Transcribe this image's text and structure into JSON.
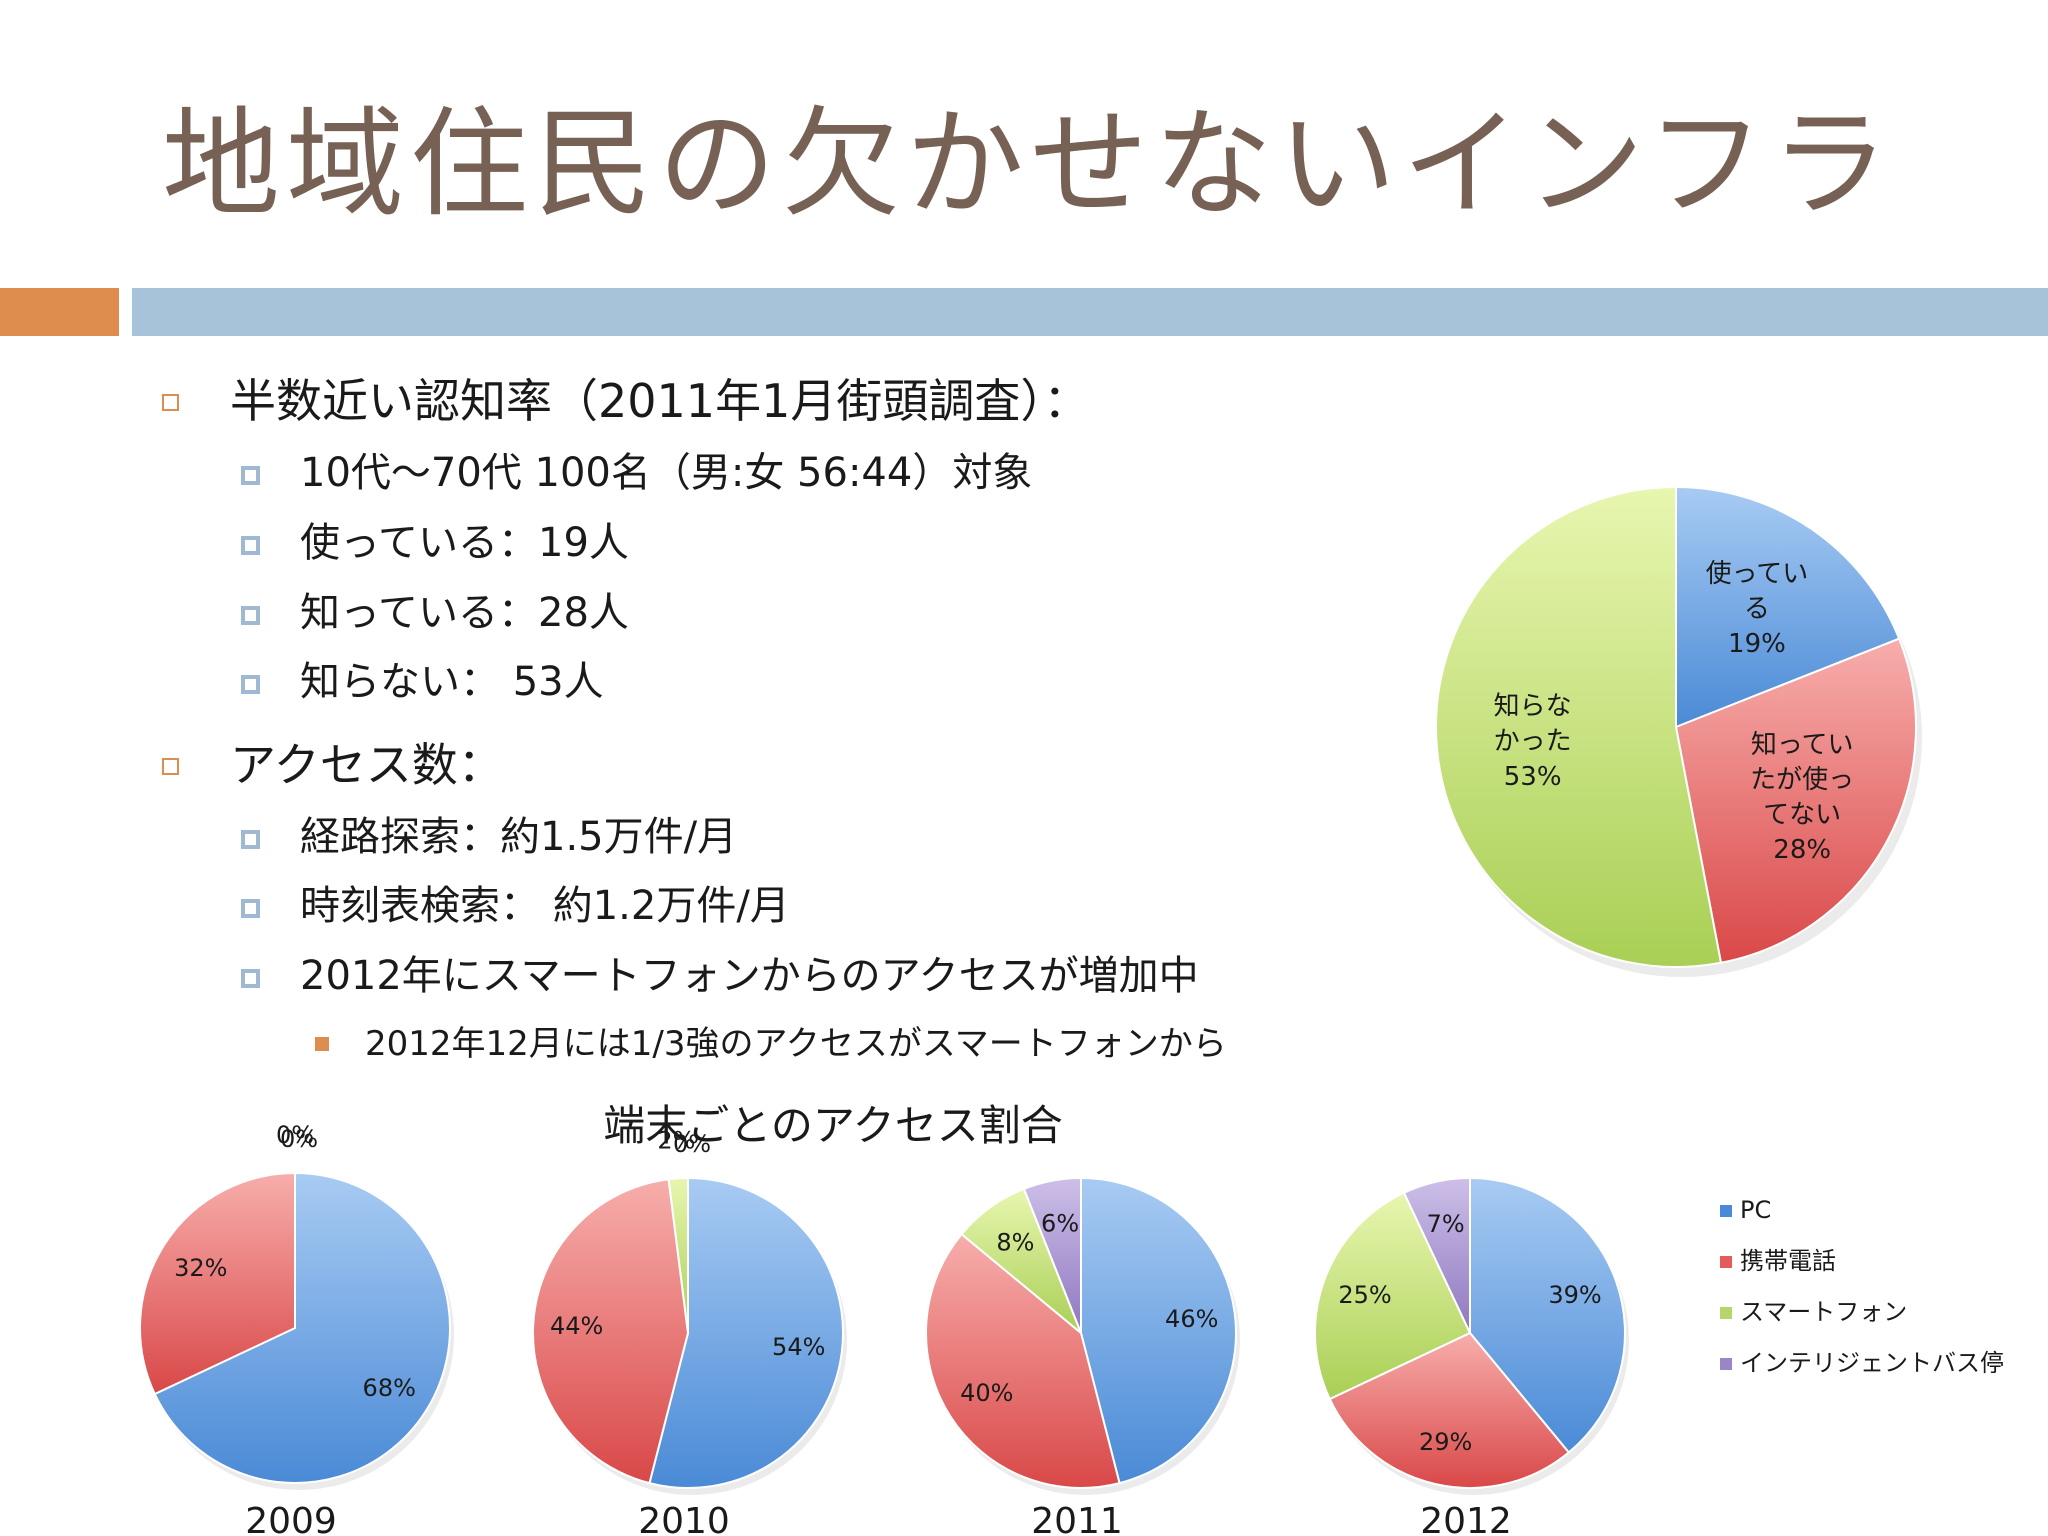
{
  "title": "地域住民の欠かせないインフラ",
  "bullets": {
    "awareness": "半数近い認知率（2011年1月街頭調査）：",
    "survey_target": "10代〜70代 100名（男:女 56:44）対象",
    "using": "使っている：19人",
    "knowing": "知っている：28人",
    "not_knowing": "知らない：  53人",
    "access_count": "アクセス数：",
    "route_search": "経路探索：約1.5万件/月",
    "timetable_search": "時刻表検索： 約1.2万件/月",
    "smartphone_increase": "2012年にスマートフォンからのアクセスが増加中",
    "smartphone_share": "2012年12月には1/3強のアクセスがスマートフォンから"
  },
  "chart_data": [
    {
      "type": "pie",
      "id": "awareness",
      "title": "",
      "slices": [
        {
          "label": "使ってい\nる",
          "percent_label": "19%",
          "value": 19,
          "color": "#4a8ad6"
        },
        {
          "label": "知ってい\nたが使っ\nてない",
          "percent_label": "28%",
          "value": 28,
          "color": "#e45b5b"
        },
        {
          "label": "知らな\nかった",
          "percent_label": "53%",
          "value": 53,
          "color": "#b6d66c"
        }
      ]
    },
    {
      "type": "pie",
      "id": "device_share",
      "title": "端末ごとのアクセス割合",
      "legend": [
        "PC",
        "携帯電話",
        "スマートフォン",
        "インテリジェントバス停"
      ],
      "colors": [
        "#4a8ad6",
        "#e45b5b",
        "#b6d66c",
        "#9a85c6"
      ],
      "legend_position": "right",
      "charts": [
        {
          "year": "2009",
          "values": [
            68,
            32,
            0,
            0
          ],
          "labels": [
            "68%",
            "32%",
            "0%",
            "0%"
          ]
        },
        {
          "year": "2010",
          "values": [
            54,
            44,
            2,
            0
          ],
          "labels": [
            "54%",
            "44%",
            "2%",
            "0%"
          ]
        },
        {
          "year": "2011",
          "values": [
            46,
            40,
            8,
            6
          ],
          "labels": [
            "46%",
            "40%",
            "8%",
            "6%"
          ]
        },
        {
          "year": "2012",
          "values": [
            39,
            29,
            25,
            7
          ],
          "labels": [
            "39%",
            "29%",
            "25%",
            "7%"
          ]
        }
      ]
    }
  ]
}
